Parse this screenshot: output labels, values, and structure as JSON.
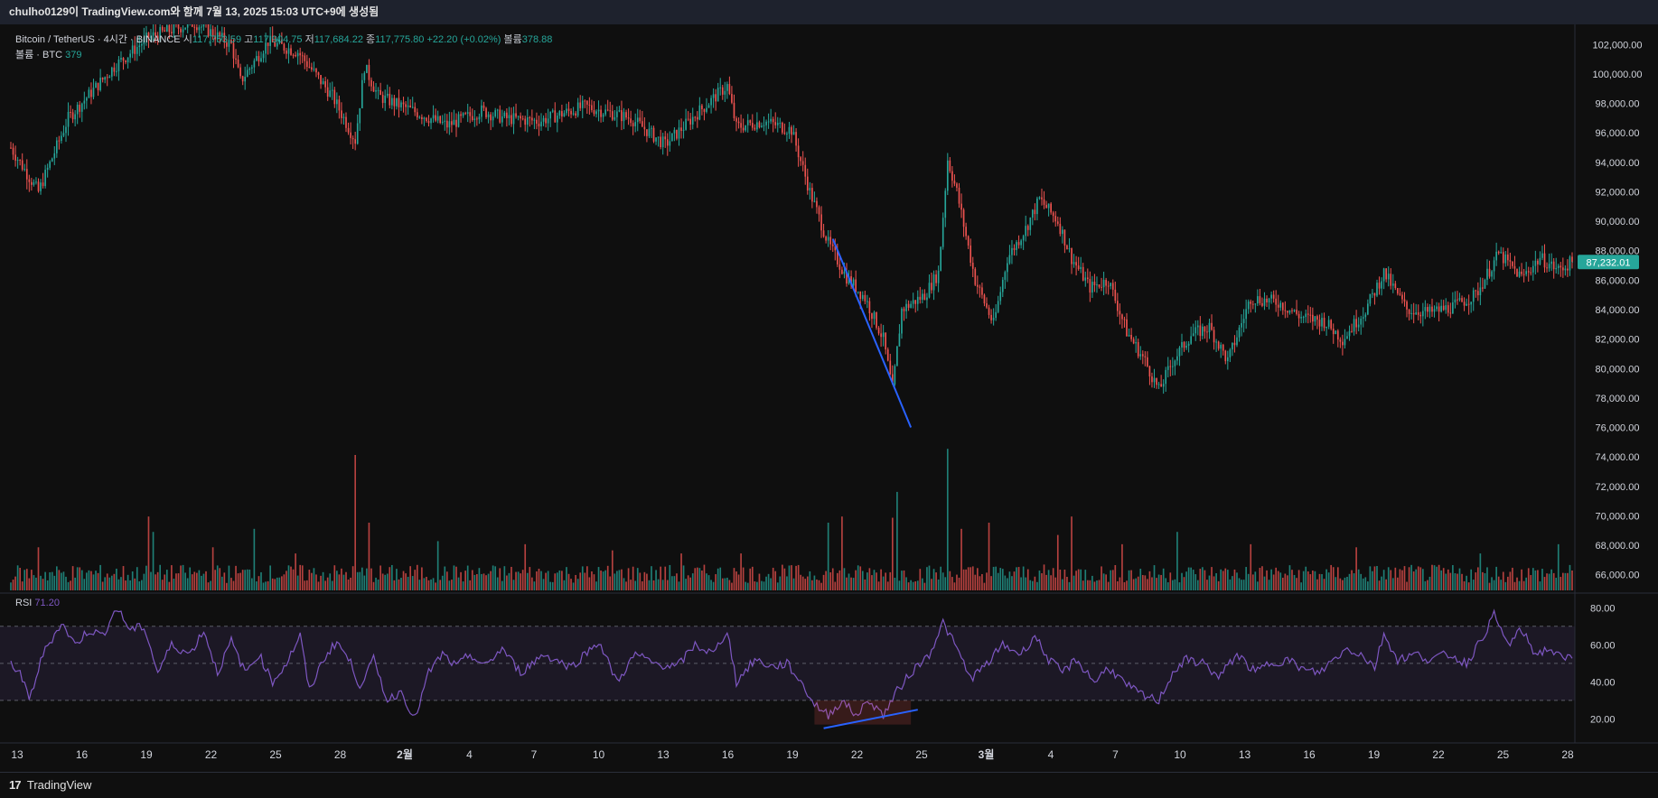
{
  "header": {
    "title": "chulho0129이 TradingView.com와 함께 7월 13, 2025 15:03 UTC+9에 생성됨"
  },
  "legend": {
    "symbol": "Bitcoin / TetherUS · 4시간 · BINANCE",
    "open_label": "시",
    "open_value": "117,753.59",
    "high_label": "고",
    "high_value": "117,904.75",
    "low_label": "저",
    "low_value": "117,684.22",
    "close_label": "종",
    "close_value": "117,775.80",
    "change": "+22.20 (+0.02%)",
    "volume_label": "볼륨",
    "volume_value": "378.88",
    "vol_series": "볼륨 · BTC",
    "vol_series_value": "379"
  },
  "rsi_legend": {
    "label": "RSI",
    "value": "71.20"
  },
  "footer": {
    "brand": "TradingView",
    "logo_glyph": "17"
  },
  "colors": {
    "up": "#26a69a",
    "down": "#ef5350",
    "rsi": "#7e57c2",
    "trendline": "#2962ff",
    "price_badge": "#26a69a"
  },
  "chart_data": {
    "type": "candlestick",
    "symbol": "BTC/USDT",
    "timeframe": "4시간",
    "price_axis": {
      "ylim": [
        65000,
        103000
      ],
      "ticks": [
        "102,000.00",
        "100,000.00",
        "98,000.00",
        "96,000.00",
        "94,000.00",
        "92,000.00",
        "90,000.00",
        "88,000.00",
        "86,000.00",
        "84,000.00",
        "82,000.00",
        "80,000.00",
        "78,000.00",
        "76,000.00",
        "74,000.00",
        "72,000.00",
        "70,000.00",
        "68,000.00",
        "66,000.00"
      ]
    },
    "last_price": "87,232.01",
    "x_axis": {
      "ticks": [
        "13",
        "16",
        "19",
        "22",
        "25",
        "28",
        "2월",
        "4",
        "7",
        "10",
        "13",
        "16",
        "19",
        "22",
        "25",
        "3월",
        "4",
        "7",
        "10",
        "13",
        "16",
        "19",
        "22",
        "25",
        "28"
      ]
    },
    "price_path": [
      {
        "t": 0,
        "p": 95000
      },
      {
        "t": 12,
        "p": 92000
      },
      {
        "t": 25,
        "p": 97000
      },
      {
        "t": 45,
        "p": 100500
      },
      {
        "t": 60,
        "p": 102500
      },
      {
        "t": 80,
        "p": 103500
      },
      {
        "t": 96,
        "p": 102000
      },
      {
        "t": 100,
        "p": 99500
      },
      {
        "t": 112,
        "p": 102200
      },
      {
        "t": 125,
        "p": 101500
      },
      {
        "t": 140,
        "p": 98500
      },
      {
        "t": 150,
        "p": 95500
      },
      {
        "t": 154,
        "p": 100500
      },
      {
        "t": 160,
        "p": 98500
      },
      {
        "t": 175,
        "p": 97500
      },
      {
        "t": 190,
        "p": 96500
      },
      {
        "t": 205,
        "p": 97500
      },
      {
        "t": 215,
        "p": 97000
      },
      {
        "t": 230,
        "p": 96800
      },
      {
        "t": 250,
        "p": 97800
      },
      {
        "t": 270,
        "p": 97000
      },
      {
        "t": 285,
        "p": 95200
      },
      {
        "t": 300,
        "p": 97500
      },
      {
        "t": 312,
        "p": 99200
      },
      {
        "t": 316,
        "p": 96400
      },
      {
        "t": 328,
        "p": 96800
      },
      {
        "t": 340,
        "p": 96200
      },
      {
        "t": 348,
        "p": 92000
      },
      {
        "t": 356,
        "p": 88500
      },
      {
        "t": 364,
        "p": 86200
      },
      {
        "t": 372,
        "p": 84800
      },
      {
        "t": 380,
        "p": 82000
      },
      {
        "t": 384,
        "p": 78500
      },
      {
        "t": 388,
        "p": 84000
      },
      {
        "t": 398,
        "p": 85000
      },
      {
        "t": 404,
        "p": 86500
      },
      {
        "t": 408,
        "p": 94200
      },
      {
        "t": 412,
        "p": 92000
      },
      {
        "t": 420,
        "p": 86000
      },
      {
        "t": 428,
        "p": 83000
      },
      {
        "t": 434,
        "p": 87500
      },
      {
        "t": 442,
        "p": 89500
      },
      {
        "t": 448,
        "p": 91500
      },
      {
        "t": 456,
        "p": 90000
      },
      {
        "t": 462,
        "p": 87500
      },
      {
        "t": 470,
        "p": 85500
      },
      {
        "t": 478,
        "p": 86000
      },
      {
        "t": 486,
        "p": 82500
      },
      {
        "t": 494,
        "p": 80500
      },
      {
        "t": 500,
        "p": 78500
      },
      {
        "t": 506,
        "p": 80500
      },
      {
        "t": 514,
        "p": 82300
      },
      {
        "t": 522,
        "p": 82800
      },
      {
        "t": 530,
        "p": 80500
      },
      {
        "t": 540,
        "p": 84800
      },
      {
        "t": 552,
        "p": 84500
      },
      {
        "t": 562,
        "p": 83500
      },
      {
        "t": 572,
        "p": 83200
      },
      {
        "t": 580,
        "p": 82000
      },
      {
        "t": 590,
        "p": 84000
      },
      {
        "t": 598,
        "p": 86500
      },
      {
        "t": 608,
        "p": 84000
      },
      {
        "t": 618,
        "p": 83800
      },
      {
        "t": 628,
        "p": 84200
      },
      {
        "t": 638,
        "p": 85000
      },
      {
        "t": 648,
        "p": 87800
      },
      {
        "t": 658,
        "p": 86200
      },
      {
        "t": 666,
        "p": 87500
      },
      {
        "t": 674,
        "p": 86700
      },
      {
        "t": 680,
        "p": 87232
      }
    ],
    "volume_scale": {
      "max": 220
    },
    "volume_spikes": [
      {
        "t": 12,
        "v": 70
      },
      {
        "t": 60,
        "v": 120
      },
      {
        "t": 62,
        "v": 95
      },
      {
        "t": 88,
        "v": 70
      },
      {
        "t": 106,
        "v": 100
      },
      {
        "t": 124,
        "v": 60
      },
      {
        "t": 150,
        "v": 220
      },
      {
        "t": 156,
        "v": 110
      },
      {
        "t": 186,
        "v": 80
      },
      {
        "t": 224,
        "v": 75
      },
      {
        "t": 262,
        "v": 65
      },
      {
        "t": 292,
        "v": 60
      },
      {
        "t": 318,
        "v": 60
      },
      {
        "t": 356,
        "v": 110
      },
      {
        "t": 362,
        "v": 120
      },
      {
        "t": 384,
        "v": 118
      },
      {
        "t": 386,
        "v": 160
      },
      {
        "t": 408,
        "v": 230
      },
      {
        "t": 414,
        "v": 100
      },
      {
        "t": 426,
        "v": 110
      },
      {
        "t": 456,
        "v": 90
      },
      {
        "t": 462,
        "v": 120
      },
      {
        "t": 484,
        "v": 75
      },
      {
        "t": 508,
        "v": 95
      },
      {
        "t": 540,
        "v": 75
      },
      {
        "t": 586,
        "v": 70
      },
      {
        "t": 640,
        "v": 60
      },
      {
        "t": 674,
        "v": 75
      }
    ],
    "rsi": {
      "ylim": [
        10,
        85
      ],
      "ticks": [
        "80.00",
        "60.00",
        "40.00",
        "20.00"
      ],
      "bands": [
        30,
        50,
        70
      ],
      "points": [
        {
          "t": 0,
          "v": 50
        },
        {
          "t": 4,
          "v": 45
        },
        {
          "t": 8,
          "v": 30
        },
        {
          "t": 14,
          "v": 55
        },
        {
          "t": 22,
          "v": 72
        },
        {
          "t": 28,
          "v": 60
        },
        {
          "t": 34,
          "v": 68
        },
        {
          "t": 40,
          "v": 65
        },
        {
          "t": 46,
          "v": 80
        },
        {
          "t": 52,
          "v": 68
        },
        {
          "t": 58,
          "v": 70
        },
        {
          "t": 64,
          "v": 45
        },
        {
          "t": 70,
          "v": 60
        },
        {
          "t": 78,
          "v": 55
        },
        {
          "t": 84,
          "v": 68
        },
        {
          "t": 90,
          "v": 45
        },
        {
          "t": 96,
          "v": 62
        },
        {
          "t": 102,
          "v": 45
        },
        {
          "t": 108,
          "v": 55
        },
        {
          "t": 114,
          "v": 40
        },
        {
          "t": 120,
          "v": 50
        },
        {
          "t": 126,
          "v": 65
        },
        {
          "t": 130,
          "v": 35
        },
        {
          "t": 136,
          "v": 52
        },
        {
          "t": 142,
          "v": 62
        },
        {
          "t": 148,
          "v": 50
        },
        {
          "t": 152,
          "v": 38
        },
        {
          "t": 158,
          "v": 52
        },
        {
          "t": 164,
          "v": 30
        },
        {
          "t": 170,
          "v": 35
        },
        {
          "t": 176,
          "v": 20
        },
        {
          "t": 182,
          "v": 45
        },
        {
          "t": 188,
          "v": 55
        },
        {
          "t": 194,
          "v": 48
        },
        {
          "t": 200,
          "v": 55
        },
        {
          "t": 206,
          "v": 48
        },
        {
          "t": 214,
          "v": 58
        },
        {
          "t": 222,
          "v": 45
        },
        {
          "t": 232,
          "v": 55
        },
        {
          "t": 244,
          "v": 48
        },
        {
          "t": 256,
          "v": 62
        },
        {
          "t": 264,
          "v": 40
        },
        {
          "t": 272,
          "v": 55
        },
        {
          "t": 280,
          "v": 50
        },
        {
          "t": 290,
          "v": 48
        },
        {
          "t": 298,
          "v": 60
        },
        {
          "t": 306,
          "v": 55
        },
        {
          "t": 312,
          "v": 68
        },
        {
          "t": 316,
          "v": 40
        },
        {
          "t": 324,
          "v": 52
        },
        {
          "t": 332,
          "v": 48
        },
        {
          "t": 338,
          "v": 50
        },
        {
          "t": 344,
          "v": 40
        },
        {
          "t": 350,
          "v": 28
        },
        {
          "t": 356,
          "v": 22
        },
        {
          "t": 362,
          "v": 30
        },
        {
          "t": 368,
          "v": 22
        },
        {
          "t": 374,
          "v": 30
        },
        {
          "t": 380,
          "v": 22
        },
        {
          "t": 386,
          "v": 35
        },
        {
          "t": 392,
          "v": 45
        },
        {
          "t": 400,
          "v": 55
        },
        {
          "t": 406,
          "v": 72
        },
        {
          "t": 412,
          "v": 58
        },
        {
          "t": 418,
          "v": 42
        },
        {
          "t": 424,
          "v": 48
        },
        {
          "t": 432,
          "v": 60
        },
        {
          "t": 440,
          "v": 55
        },
        {
          "t": 446,
          "v": 65
        },
        {
          "t": 452,
          "v": 52
        },
        {
          "t": 458,
          "v": 45
        },
        {
          "t": 464,
          "v": 52
        },
        {
          "t": 472,
          "v": 40
        },
        {
          "t": 478,
          "v": 48
        },
        {
          "t": 486,
          "v": 38
        },
        {
          "t": 494,
          "v": 32
        },
        {
          "t": 500,
          "v": 30
        },
        {
          "t": 506,
          "v": 45
        },
        {
          "t": 512,
          "v": 52
        },
        {
          "t": 520,
          "v": 50
        },
        {
          "t": 526,
          "v": 42
        },
        {
          "t": 534,
          "v": 55
        },
        {
          "t": 542,
          "v": 45
        },
        {
          "t": 548,
          "v": 50
        },
        {
          "t": 556,
          "v": 52
        },
        {
          "t": 564,
          "v": 46
        },
        {
          "t": 570,
          "v": 45
        },
        {
          "t": 576,
          "v": 52
        },
        {
          "t": 582,
          "v": 58
        },
        {
          "t": 588,
          "v": 55
        },
        {
          "t": 594,
          "v": 48
        },
        {
          "t": 598,
          "v": 66
        },
        {
          "t": 604,
          "v": 52
        },
        {
          "t": 612,
          "v": 55
        },
        {
          "t": 618,
          "v": 52
        },
        {
          "t": 626,
          "v": 55
        },
        {
          "t": 634,
          "v": 50
        },
        {
          "t": 640,
          "v": 62
        },
        {
          "t": 646,
          "v": 76
        },
        {
          "t": 652,
          "v": 60
        },
        {
          "t": 658,
          "v": 68
        },
        {
          "t": 664,
          "v": 55
        },
        {
          "t": 670,
          "v": 58
        },
        {
          "t": 676,
          "v": 52
        },
        {
          "t": 680,
          "v": 54
        }
      ]
    },
    "annotations": [
      {
        "type": "trendline",
        "pane": "price",
        "from": {
          "t": 358,
          "p": 88800
        },
        "to": {
          "t": 392,
          "p": 76000
        }
      },
      {
        "type": "trendline",
        "pane": "rsi",
        "from": {
          "t": 354,
          "v": 15
        },
        "to": {
          "t": 395,
          "v": 25
        }
      }
    ]
  }
}
